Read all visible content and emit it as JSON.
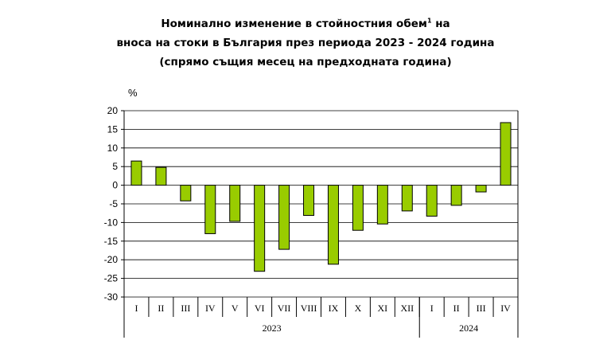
{
  "title": {
    "line1_main": "Номинално изменение в стойностния обем",
    "line1_sup": "1",
    "line1_end": " на",
    "line2": "вноса на стоки в България през периода 2023 - 2024 година",
    "line3": "(спрямо същия месец на предходната година)"
  },
  "chart_data": {
    "type": "bar",
    "ylabel": "%",
    "ylim": [
      -30,
      20
    ],
    "yticks": [
      20,
      15,
      10,
      5,
      0,
      -5,
      -10,
      -15,
      -20,
      -25,
      -30
    ],
    "grid": true,
    "categories": [
      "I",
      "II",
      "III",
      "IV",
      "V",
      "VI",
      "VII",
      "VIII",
      "IX",
      "X",
      "XI",
      "XII",
      "I",
      "II",
      "III",
      "IV"
    ],
    "groups": [
      {
        "label": "2023",
        "count": 12
      },
      {
        "label": "2024",
        "count": 4
      }
    ],
    "values": [
      6.5,
      4.8,
      -4.2,
      -13.0,
      -9.7,
      -23.1,
      -17.2,
      -8.1,
      -21.2,
      -12.1,
      -10.4,
      -6.9,
      -8.3,
      -5.4,
      -1.8,
      16.8
    ],
    "colors": {
      "bar": "#99cc00",
      "bar_stroke": "#000000",
      "grid": "#000000"
    }
  }
}
